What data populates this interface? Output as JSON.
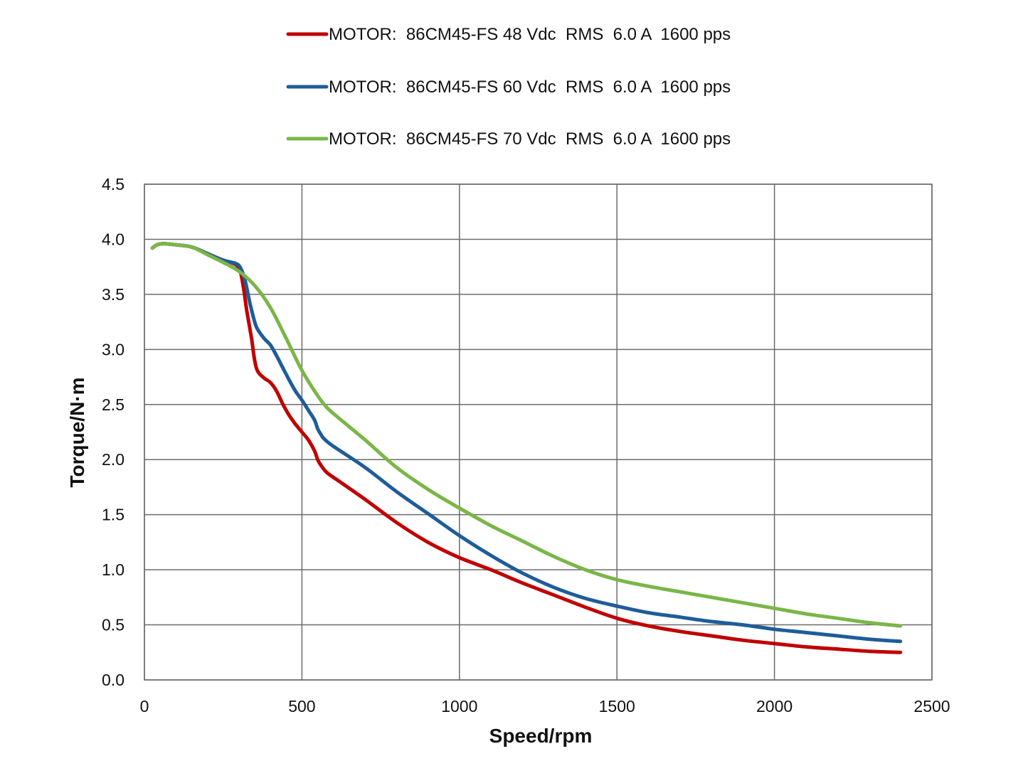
{
  "chart_data": {
    "type": "line",
    "title": "",
    "xlabel": "Speed/rpm",
    "ylabel": "Torque/N·m",
    "xlim": [
      0,
      2500
    ],
    "ylim": [
      0,
      4.5
    ],
    "x_ticks": [
      0,
      500,
      1000,
      1500,
      2000,
      2500
    ],
    "y_ticks": [
      0.0,
      0.5,
      1.0,
      1.5,
      2.0,
      2.5,
      3.0,
      3.5,
      4.0,
      4.5
    ],
    "x_tick_labels": [
      "0",
      "500",
      "1000",
      "1500",
      "2000",
      "2500"
    ],
    "y_tick_labels": [
      "0.0",
      "0.5",
      "1.0",
      "1.5",
      "2.0",
      "2.5",
      "3.0",
      "3.5",
      "4.0",
      "4.5"
    ],
    "grid": true,
    "legend_position": "top-center",
    "series": [
      {
        "name": "MOTOR:  86CM45-FS 48 Vdc  RMS  6.0 A  1600 pps",
        "color": "#c00000",
        "x": [
          25,
          40,
          60,
          100,
          150,
          200,
          250,
          290,
          305,
          315,
          325,
          340,
          350,
          360,
          380,
          400,
          420,
          440,
          460,
          480,
          500,
          520,
          540,
          550,
          560,
          580,
          620,
          700,
          800,
          900,
          1000,
          1100,
          1200,
          1300,
          1400,
          1500,
          1600,
          1700,
          1800,
          1900,
          2000,
          2100,
          2200,
          2300,
          2400
        ],
        "y": [
          3.92,
          3.95,
          3.96,
          3.95,
          3.93,
          3.87,
          3.81,
          3.77,
          3.7,
          3.55,
          3.35,
          3.1,
          2.9,
          2.8,
          2.74,
          2.7,
          2.62,
          2.5,
          2.4,
          2.32,
          2.25,
          2.18,
          2.08,
          2.0,
          1.95,
          1.88,
          1.8,
          1.64,
          1.43,
          1.25,
          1.11,
          1.0,
          0.88,
          0.77,
          0.66,
          0.56,
          0.49,
          0.44,
          0.4,
          0.36,
          0.33,
          0.3,
          0.28,
          0.26,
          0.25
        ]
      },
      {
        "name": "MOTOR:  86CM45-FS 60 Vdc  RMS  6.0 A  1600 pps",
        "color": "#1f5c99",
        "x": [
          25,
          40,
          60,
          100,
          150,
          200,
          250,
          290,
          305,
          320,
          335,
          350,
          360,
          380,
          400,
          420,
          440,
          460,
          480,
          500,
          520,
          540,
          550,
          560,
          570,
          600,
          700,
          800,
          900,
          1000,
          1100,
          1200,
          1300,
          1400,
          1500,
          1600,
          1700,
          1800,
          1900,
          2000,
          2100,
          2200,
          2300,
          2400
        ],
        "y": [
          3.92,
          3.95,
          3.96,
          3.95,
          3.93,
          3.87,
          3.81,
          3.78,
          3.74,
          3.62,
          3.42,
          3.25,
          3.18,
          3.1,
          3.04,
          2.94,
          2.83,
          2.72,
          2.62,
          2.54,
          2.45,
          2.36,
          2.28,
          2.23,
          2.19,
          2.12,
          1.93,
          1.71,
          1.51,
          1.31,
          1.13,
          0.97,
          0.84,
          0.74,
          0.67,
          0.61,
          0.57,
          0.53,
          0.5,
          0.46,
          0.43,
          0.4,
          0.37,
          0.35
        ]
      },
      {
        "name": "MOTOR:  86CM45-FS 70 Vdc  RMS  6.0 A  1600 pps",
        "color": "#7ab648",
        "x": [
          25,
          40,
          60,
          100,
          150,
          200,
          250,
          300,
          350,
          400,
          450,
          500,
          550,
          580,
          620,
          700,
          800,
          900,
          1000,
          1100,
          1200,
          1300,
          1400,
          1500,
          1600,
          1700,
          1800,
          1900,
          2000,
          2100,
          2200,
          2300,
          2400
        ],
        "y": [
          3.92,
          3.95,
          3.96,
          3.95,
          3.93,
          3.86,
          3.79,
          3.71,
          3.58,
          3.38,
          3.1,
          2.81,
          2.58,
          2.47,
          2.37,
          2.18,
          1.93,
          1.73,
          1.56,
          1.4,
          1.26,
          1.12,
          1.0,
          0.91,
          0.85,
          0.8,
          0.75,
          0.7,
          0.65,
          0.6,
          0.56,
          0.52,
          0.49
        ]
      }
    ]
  }
}
